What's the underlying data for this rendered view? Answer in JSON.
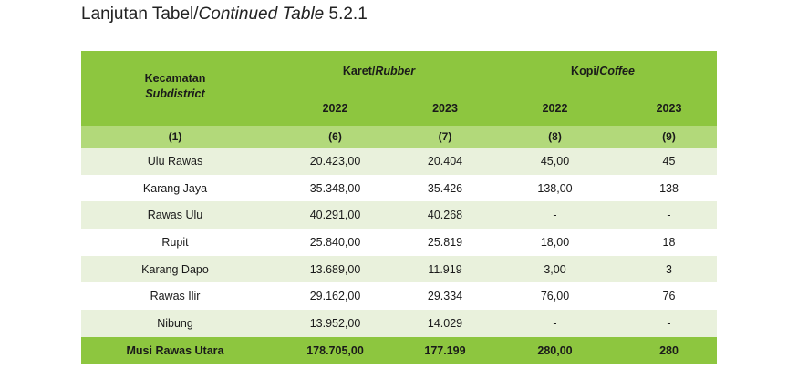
{
  "title": {
    "main": "Lanjutan Tabel/",
    "italic": "Continued Table",
    "number": " 5.2.1"
  },
  "header": {
    "kecamatan": "Kecamatan",
    "subdistrict": "Subdistrict",
    "karet": "Karet/",
    "rubber": "Rubber",
    "kopi": "Kopi/",
    "coffee": "Coffee",
    "years": [
      "2022",
      "2023",
      "2022",
      "2023"
    ],
    "col_nums": [
      "(1)",
      "(6)",
      "(7)",
      "(8)",
      "(9)"
    ]
  },
  "rows": [
    [
      "Ulu Rawas",
      "20.423,00",
      "20.404",
      "45,00",
      "45"
    ],
    [
      "Karang Jaya",
      "35.348,00",
      "35.426",
      "138,00",
      "138"
    ],
    [
      "Rawas Ulu",
      "40.291,00",
      "40.268",
      "-",
      "-"
    ],
    [
      "Rupit",
      "25.840,00",
      "25.819",
      "18,00",
      "18"
    ],
    [
      "Karang Dapo",
      "13.689,00",
      "11.919",
      "3,00",
      "3"
    ],
    [
      "Rawas Ilir",
      "29.162,00",
      "29.334",
      "76,00",
      "76"
    ],
    [
      "Nibung",
      "13.952,00",
      "14.029",
      "-",
      "-"
    ]
  ],
  "total": [
    "Musi Rawas Utara",
    "178.705,00",
    "177.199",
    "280,00",
    "280"
  ]
}
